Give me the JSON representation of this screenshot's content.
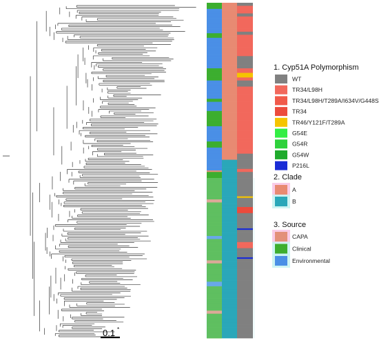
{
  "colors": {
    "WT": "#808080",
    "TR34/L98H": "#f2685c",
    "TR34/L98H/T289A/I634V/G448S": "#f15a4a",
    "TR34": "#ec4b3c",
    "TR46/Y121F/T289A": "#f5c400",
    "G54E": "#33ee44",
    "G54R": "#2fd13c",
    "G54W": "#1faa2c",
    "P216L": "#1a2cd6",
    "A": "#e88a72",
    "B": "#2aa7b9",
    "CAPA": "#e3907a",
    "Clinical": "#3cae2f",
    "Environmental": "#4a8fe6",
    "pale_pink": "#f8c6e6",
    "pale_cyan": "#c9f3f2",
    "tree": "#333333"
  },
  "legend": {
    "polymorphism": {
      "title": "1. Cyp51A Polymorphism",
      "items": [
        "WT",
        "TR34/L98H",
        "TR34/L98H/T289A/I634V/G448S",
        "TR34",
        "TR46/Y121F/T289A",
        "G54E",
        "G54R",
        "G54W",
        "P216L"
      ]
    },
    "clade": {
      "title": "2. Clade",
      "items": [
        "A",
        "B"
      ]
    },
    "source": {
      "title": "3. Source",
      "items": [
        "CAPA",
        "Clinical",
        "Environmental"
      ]
    }
  },
  "scale_bar": {
    "label": "0.1",
    "star": "*"
  },
  "strips": {
    "rows": 220,
    "source_runs": [
      [
        "Clinical",
        4
      ],
      [
        "Environmental",
        16
      ],
      [
        "Clinical",
        3
      ],
      [
        "Environmental",
        20
      ],
      [
        "Clinical",
        8
      ],
      [
        "Environmental",
        12
      ],
      [
        "Clinical",
        2
      ],
      [
        "Environmental",
        6
      ],
      [
        "Clinical",
        10
      ],
      [
        "Environmental",
        10
      ],
      [
        "Clinical",
        4
      ],
      [
        "Environmental",
        15
      ],
      [
        "CAPA",
        1
      ],
      [
        "Clinical",
        18
      ],
      [
        "CAPA",
        2
      ],
      [
        "Clinical",
        22
      ],
      [
        "Environmental",
        2
      ],
      [
        "Clinical",
        14
      ],
      [
        "CAPA",
        2
      ],
      [
        "Clinical",
        12
      ],
      [
        "Environmental",
        3
      ],
      [
        "Clinical",
        16
      ],
      [
        "CAPA",
        2
      ],
      [
        "Clinical",
        16
      ]
    ],
    "clade_runs": [
      [
        "A",
        103
      ],
      [
        "B",
        117
      ]
    ],
    "poly_runs": [
      [
        "WT",
        2
      ],
      [
        "TR34/L98H",
        5
      ],
      [
        "WT",
        2
      ],
      [
        "TR34/L98H",
        10
      ],
      [
        "WT",
        2
      ],
      [
        "TR34/L98H",
        14
      ],
      [
        "WT",
        8
      ],
      [
        "TR34/L98H",
        3
      ],
      [
        "TR46/Y121F/T289A",
        3
      ],
      [
        "TR34/L98H",
        2
      ],
      [
        "WT",
        4
      ],
      [
        "TR34/L98H",
        44
      ],
      [
        "WT",
        10
      ],
      [
        "TR34/L98H",
        2
      ],
      [
        "WT",
        16
      ],
      [
        "TR46/Y121F/T289A",
        1
      ],
      [
        "WT",
        6
      ],
      [
        "TR34",
        4
      ],
      [
        "WT",
        10
      ],
      [
        "P216L",
        1
      ],
      [
        "WT",
        8
      ],
      [
        "TR34/L98H",
        4
      ],
      [
        "WT",
        6
      ],
      [
        "P216L",
        1
      ],
      [
        "WT",
        52
      ]
    ]
  }
}
